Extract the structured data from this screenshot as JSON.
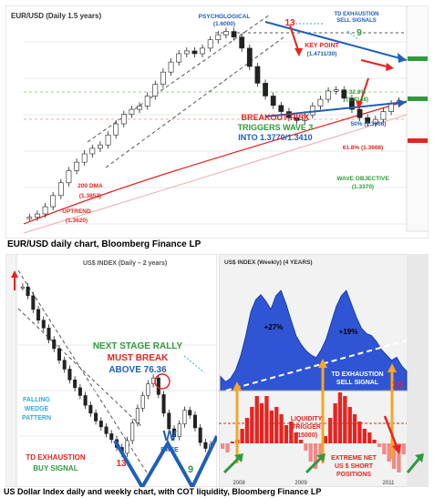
{
  "captions": {
    "top": "EUR/USD daily chart, Bloomberg Finance LP",
    "bottom": "US Dollar Index daily and weekly chart, with COT liquidity, Bloomberg Finance LP"
  },
  "colors": {
    "red": "#e8231f",
    "blue": "#1f5fb8",
    "green": "#2e9b3a",
    "cyan": "#33aadd",
    "orange": "#f5a623",
    "area_blue": "#2f55d4"
  },
  "chart_data": [
    {
      "type": "candlestick",
      "title": "EUR/USD (Daily 1.5 years)",
      "annotations": {
        "psychological": [
          "PSYCHOLOGICAL",
          "(1.6000)"
        ],
        "td_exhaustion": [
          "TD EXHAUSTION",
          "SELL SIGNALS"
        ],
        "count_13": "13",
        "count_9": "9",
        "key_point": [
          "KEY POINT",
          "(1.4711/30)"
        ],
        "breakout": [
          "BREAKOUT RISK",
          "TRIGGERS WAVE 3",
          "INTO 1.3770/1.3410"
        ],
        "fib_32": [
          "32.8%",
          "(1.4148)"
        ],
        "fib_50": "50% (1.3908)",
        "fib_618": "61.8% (1.3668)",
        "wave_objective": [
          "WAVE OBJECTIVE",
          "(1.3370)"
        ],
        "dma200": [
          "200 DMA",
          "(1.3852)"
        ],
        "uptrend": [
          "UPTREND",
          "(1.3620)"
        ]
      },
      "price_series": [
        1.262,
        1.268,
        1.281,
        1.301,
        1.324,
        1.346,
        1.361,
        1.376,
        1.386,
        1.392,
        1.41,
        1.43,
        1.447,
        1.456,
        1.462,
        1.48,
        1.501,
        1.523,
        1.541,
        1.556,
        1.561,
        1.556,
        1.566,
        1.581,
        1.59,
        1.596,
        1.586,
        1.566,
        1.533,
        1.503,
        1.48,
        1.463,
        1.452,
        1.441,
        1.436,
        1.446,
        1.462,
        1.474,
        1.489,
        1.491,
        1.476,
        1.456,
        1.441,
        1.431,
        1.438,
        1.452,
        1.466,
        1.471
      ]
    },
    {
      "type": "candlestick",
      "title": "US$ INDEX (Daily – 2 years)",
      "annotations": {
        "next_stage": [
          "NEXT STAGE RALLY",
          "MUST BREAK",
          "ABOVE 76.36"
        ],
        "falling_wedge": [
          "FALLING",
          "WEDGE",
          "PATTERN"
        ],
        "td_buy": [
          "TD EXHAUSTION",
          "BUY SIGNAL"
        ],
        "count_13": "13",
        "count_9": "9",
        "w_base": [
          "W",
          "BASE"
        ]
      },
      "price_series": [
        88.5,
        87.6,
        86.2,
        85.1,
        84.3,
        83.1,
        82.2,
        81.0,
        80.1,
        79.0,
        78.2,
        77.4,
        76.4,
        75.6,
        74.8,
        74.2,
        73.5,
        72.9,
        72.1,
        71.5,
        72.8,
        74.6,
        76.1,
        77.4,
        78.6,
        79.2,
        77.5,
        75.6,
        74.0,
        73.2,
        74.5,
        75.9,
        75.4,
        74.1,
        72.6,
        72.0,
        72.4
      ]
    },
    {
      "type": "area",
      "title": "US$ INDEX (Weekly) (4 YEARS)",
      "ylim": [
        70,
        92
      ],
      "annotations": {
        "pct_a": "+27%",
        "pct_b": "+19%",
        "td_sell": [
          "TD EXHAUSTION",
          "SELL SIGNAL"
        ],
        "count_13": "13",
        "liquidity": [
          "LIQUIDITY",
          "TRIGGER",
          "(15000)"
        ],
        "extreme": [
          "EXTREME NET",
          "US $ SHORT",
          "POSITIONS"
        ]
      },
      "x_labels": [
        "2008",
        "2009",
        "2011"
      ],
      "dxy_series": [
        72.6,
        71.6,
        72.3,
        73.8,
        76.5,
        80.2,
        84.6,
        86.9,
        87.8,
        86.6,
        85.1,
        87.6,
        88.6,
        86.1,
        83.1,
        80.2,
        78.6,
        77.4,
        76.6,
        76.1,
        77.6,
        79.6,
        82.6,
        85.6,
        87.6,
        88.6,
        86.1,
        83.6,
        81.6,
        80.6,
        80.2,
        79.1,
        77.6,
        76.6,
        75.6,
        76.2,
        74.6,
        73.6
      ],
      "cot_series": [
        -3,
        -5,
        1,
        2,
        8,
        14,
        20,
        26,
        22,
        26,
        18,
        20,
        16,
        10,
        12,
        6,
        2,
        -4,
        -10,
        -14,
        -6,
        4,
        14,
        22,
        28,
        26,
        20,
        16,
        12,
        8,
        6,
        2,
        -2,
        -6,
        -10,
        -14,
        -16,
        -6
      ]
    }
  ]
}
